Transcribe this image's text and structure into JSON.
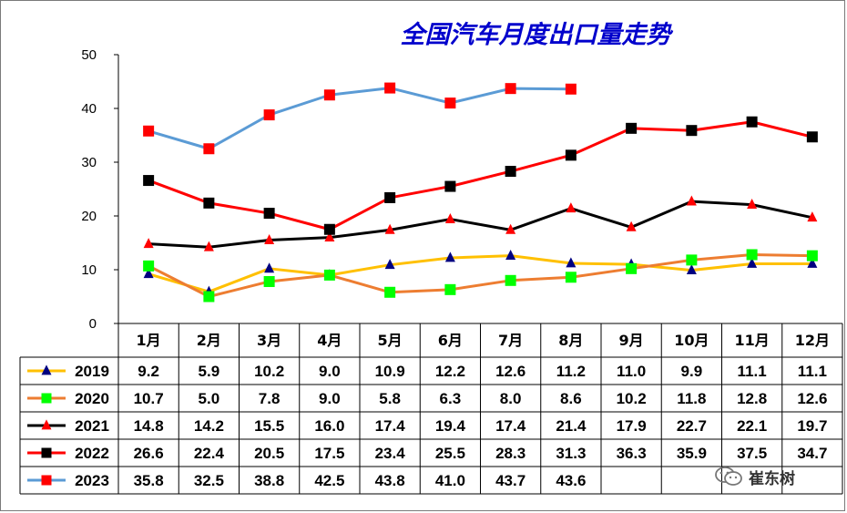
{
  "chart_data": {
    "type": "line",
    "title": "全国汽车月度出口量走势",
    "categories": [
      "1月",
      "2月",
      "3月",
      "4月",
      "5月",
      "6月",
      "7月",
      "8月",
      "9月",
      "10月",
      "11月",
      "12月"
    ],
    "ylim": [
      0,
      50
    ],
    "yticks": [
      0,
      10,
      20,
      30,
      40,
      50
    ],
    "grid": false,
    "legend": "table-left",
    "series": [
      {
        "name": "2019",
        "color": "#FFC000",
        "marker": "triangle",
        "marker_color": "#000080",
        "values": [
          9.2,
          5.9,
          10.2,
          9.0,
          10.9,
          12.2,
          12.6,
          11.2,
          11.0,
          9.9,
          11.1,
          11.1
        ]
      },
      {
        "name": "2020",
        "color": "#ED7D31",
        "marker": "square",
        "marker_color": "#00FF00",
        "values": [
          10.7,
          5.0,
          7.8,
          9.0,
          5.8,
          6.3,
          8.0,
          8.6,
          10.2,
          11.8,
          12.8,
          12.6
        ]
      },
      {
        "name": "2021",
        "color": "#000000",
        "marker": "triangle",
        "marker_color": "#FF0000",
        "values": [
          14.8,
          14.2,
          15.5,
          16.0,
          17.4,
          19.4,
          17.4,
          21.4,
          17.9,
          22.7,
          22.1,
          19.7
        ]
      },
      {
        "name": "2022",
        "color": "#FF0000",
        "marker": "square",
        "marker_color": "#000000",
        "values": [
          26.6,
          22.4,
          20.5,
          17.5,
          23.4,
          25.5,
          28.3,
          31.3,
          36.3,
          35.9,
          37.5,
          34.7
        ]
      },
      {
        "name": "2023",
        "color": "#5B9BD5",
        "marker": "square",
        "marker_color": "#FF0000",
        "values": [
          35.8,
          32.5,
          38.8,
          42.5,
          43.8,
          41.0,
          43.7,
          43.6,
          null,
          null,
          null,
          null
        ]
      }
    ],
    "table_values": [
      [
        "9.2",
        "5.9",
        "10.2",
        "9.0",
        "10.9",
        "12.2",
        "12.6",
        "11.2",
        "11.0",
        "9.9",
        "11.1",
        "11.1"
      ],
      [
        "10.7",
        "5.0",
        "7.8",
        "9.0",
        "5.8",
        "6.3",
        "8.0",
        "8.6",
        "10.2",
        "11.8",
        "12.8",
        "12.6"
      ],
      [
        "14.8",
        "14.2",
        "15.5",
        "16.0",
        "17.4",
        "19.4",
        "17.4",
        "21.4",
        "17.9",
        "22.7",
        "22.1",
        "19.7"
      ],
      [
        "26.6",
        "22.4",
        "20.5",
        "17.5",
        "23.4",
        "25.5",
        "28.3",
        "31.3",
        "36.3",
        "35.9",
        "37.5",
        "34.7"
      ],
      [
        "35.8",
        "32.5",
        "38.8",
        "42.5",
        "43.8",
        "41.0",
        "43.7",
        "43.6",
        "",
        "",
        "",
        ""
      ]
    ],
    "title_color": "#0000CC"
  },
  "watermark": {
    "text": "崔东树",
    "icon": "wechat-icon"
  }
}
